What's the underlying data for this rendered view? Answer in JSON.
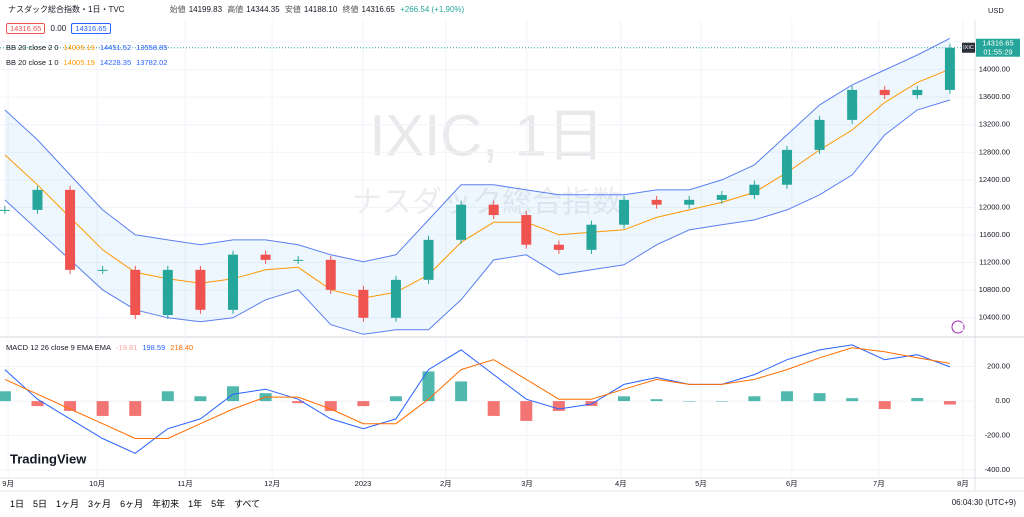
{
  "header": {
    "symbol": "ナスダック総合指数・1日・TVC",
    "open_label": "始値",
    "open": "14199.83",
    "high_label": "高値",
    "high": "14344.35",
    "low_label": "安値",
    "low": "14188.10",
    "close_label": "終値",
    "close": "14316.65",
    "change": "+266.54 (+1.90%)",
    "badges": [
      "14316.65",
      "0.00",
      "14316.65"
    ],
    "currency": "USD"
  },
  "legend": [
    {
      "name": "BB 20 close 2 0",
      "values": [
        "14005.19",
        "14451.52",
        "13558.85"
      ]
    },
    {
      "name": "BB 20 close 1 0",
      "values": [
        "14005.19",
        "14228.35",
        "13782.02"
      ]
    },
    {
      "name": "MACD 12 26 close 9 EMA EMA",
      "values": [
        "-19.81",
        "198.59",
        "218.40"
      ]
    }
  ],
  "watermark": {
    "title": "IXIC, 1日",
    "subtitle": "ナスダック総合指数"
  },
  "price_tag": {
    "symbol": "IXIC",
    "time": "01:55:29"
  },
  "toolbar": {
    "periods": [
      "1日",
      "5日",
      "1ヶ月",
      "3ヶ月",
      "6ヶ月",
      "年初来",
      "1年",
      "5年",
      "すべて"
    ],
    "clock": "06:04:30 (UTC+9)",
    "brand": "TradingView"
  },
  "chart_data": [
    {
      "type": "candlestick",
      "xlim": [
        -0.15,
        29.77
      ],
      "ylim": [
        10150,
        14690
      ],
      "yticks": [
        {
          "value": 10400,
          "label": "10400.00"
        },
        {
          "value": 10800,
          "label": "10800.00"
        },
        {
          "value": 11200,
          "label": "11200.00"
        },
        {
          "value": 11600,
          "label": "11600.00"
        },
        {
          "value": 12000,
          "label": "12000.00"
        },
        {
          "value": 12400,
          "label": "12400.00"
        },
        {
          "value": 12800,
          "label": "12800.00"
        },
        {
          "value": 13200,
          "label": "13200.00"
        },
        {
          "value": 13600,
          "label": "13600.00"
        },
        {
          "value": 14000,
          "label": "14000.00"
        },
        {
          "value": 14400,
          "label": "14400.00"
        }
      ],
      "xticks": [
        {
          "value": 0.1,
          "label": "9月"
        },
        {
          "value": 2.83,
          "label": "10月"
        },
        {
          "value": 5.53,
          "label": "11月"
        },
        {
          "value": 8.2,
          "label": "12月"
        },
        {
          "value": 10.99,
          "label": "2023"
        },
        {
          "value": 13.53,
          "label": "2月"
        },
        {
          "value": 16.02,
          "label": "3月"
        },
        {
          "value": 18.9,
          "label": "4月"
        },
        {
          "value": 21.36,
          "label": "5月"
        },
        {
          "value": 24.15,
          "label": "6月"
        },
        {
          "value": 26.82,
          "label": "7月"
        },
        {
          "value": 29.4,
          "label": "8月"
        }
      ],
      "grid": true,
      "series": [
        {
          "name": "close",
          "color": "#26a69a",
          "down_color": "#ef5350",
          "values": [
            11965,
            12255,
            11095,
            11095,
            10440,
            11095,
            10515,
            11315,
            11240,
            11240,
            10805,
            10400,
            10950,
            11530,
            12040,
            11890,
            11460,
            11385,
            11750,
            12110,
            12040,
            12110,
            12180,
            12330,
            12835,
            13270,
            13705,
            13630,
            13705,
            14316.65
          ]
        },
        {
          "name": "basis",
          "color": "#ff9800",
          "values": [
            12762,
            12328,
            11856,
            11386,
            11060,
            10965,
            10900,
            10965,
            11096,
            11132,
            10806,
            10686,
            10770,
            11023,
            11494,
            11784,
            11784,
            11603,
            11640,
            11676,
            11856,
            11965,
            12074,
            12218,
            12508,
            12835,
            13124,
            13523,
            13814,
            14005.19
          ]
        },
        {
          "name": "upper",
          "color": "#5b7ff0",
          "values": [
            13415,
            12980,
            12472,
            11965,
            11603,
            11530,
            11458,
            11530,
            11530,
            11458,
            11313,
            11212,
            11313,
            11820,
            12328,
            12328,
            12255,
            12183,
            12183,
            12183,
            12255,
            12255,
            12400,
            12617,
            13052,
            13487,
            13777,
            13994,
            14212,
            14451.52
          ]
        },
        {
          "name": "lower",
          "color": "#5b7ff0",
          "values": [
            12110,
            11675,
            11240,
            10806,
            10516,
            10400,
            10342,
            10400,
            10661,
            10806,
            10299,
            10160,
            10226,
            10226,
            10661,
            11240,
            11313,
            11023,
            11096,
            11168,
            11458,
            11675,
            11748,
            11820,
            11965,
            12183,
            12472,
            13052,
            13415,
            13558.85
          ]
        }
      ]
    },
    {
      "type": "macd",
      "ylim": [
        -446,
        366
      ],
      "yticks": [
        {
          "value": 200,
          "label": "200.00"
        },
        {
          "value": 0,
          "label": "0.00"
        },
        {
          "value": -200,
          "label": "-200.00"
        },
        {
          "value": -400,
          "label": "-400.00"
        }
      ],
      "series": [
        {
          "name": "histogram",
          "color": "#26a69a",
          "down_color": "#ef5350",
          "values": [
            57,
            -29,
            -57,
            -86,
            -86,
            57,
            28,
            86,
            46,
            -12,
            -57,
            -29,
            28,
            172,
            114,
            -86,
            -115,
            -57,
            -28,
            28,
            11,
            0,
            0,
            28,
            57,
            46,
            17,
            -46,
            18,
            -19.81
          ]
        },
        {
          "name": "macd",
          "color": "#2962ff",
          "values": [
            183,
            11,
            -103,
            -217,
            -303,
            -160,
            -103,
            40,
            69,
            11,
            -103,
            -160,
            -103,
            183,
            297,
            154,
            11,
            -46,
            -17,
            97,
            137,
            97,
            97,
            154,
            240,
            297,
            326,
            240,
            269,
            198.59
          ]
        },
        {
          "name": "signal",
          "color": "#ff6d00",
          "values": [
            126,
            40,
            -46,
            -131,
            -217,
            -217,
            -131,
            -46,
            23,
            23,
            -46,
            -131,
            -131,
            11,
            183,
            240,
            126,
            11,
            11,
            69,
            126,
            97,
            97,
            126,
            183,
            251,
            309,
            286,
            251,
            218.4
          ]
        }
      ]
    }
  ]
}
